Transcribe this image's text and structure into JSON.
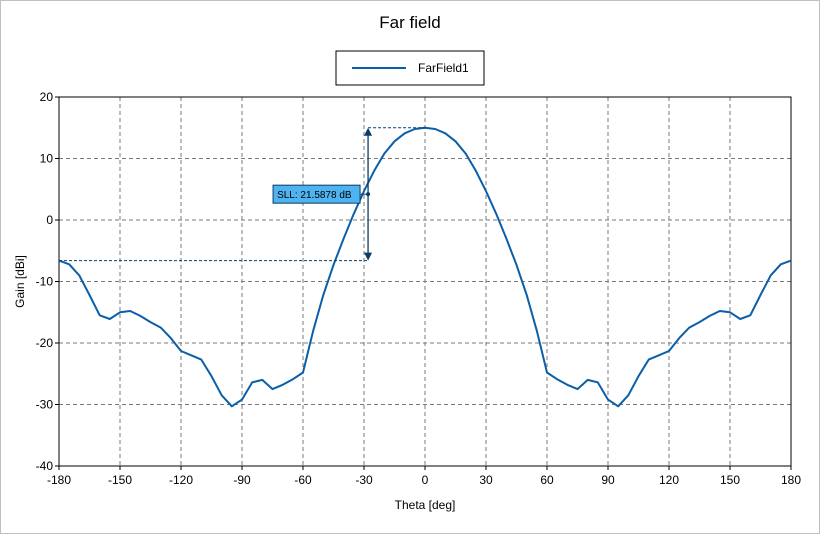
{
  "chart_data": {
    "type": "line",
    "title": "Far field",
    "xlabel": "Theta [deg]",
    "ylabel": "Gain [dBi]",
    "xlim": [
      -180,
      180
    ],
    "ylim": [
      -40,
      20
    ],
    "x_ticks": [
      -180,
      -150,
      -120,
      -90,
      -60,
      -30,
      0,
      30,
      60,
      90,
      120,
      150,
      180
    ],
    "y_ticks": [
      20,
      10,
      0,
      -10,
      -20,
      -30,
      -40
    ],
    "grid": true,
    "legend_position": "top-center",
    "series": [
      {
        "name": "FarField1",
        "color": "#0a5fa8",
        "points": [
          [
            -180,
            -6.6
          ],
          [
            -175,
            -7.2
          ],
          [
            -170,
            -9
          ],
          [
            -165,
            -12.2
          ],
          [
            -160,
            -15.5
          ],
          [
            -155,
            -16.1
          ],
          [
            -150,
            -15
          ],
          [
            -145,
            -14.8
          ],
          [
            -140,
            -15.6
          ],
          [
            -135,
            -16.6
          ],
          [
            -130,
            -17.5
          ],
          [
            -125,
            -19.2
          ],
          [
            -120,
            -21.3
          ],
          [
            -115,
            -22
          ],
          [
            -110,
            -22.7
          ],
          [
            -105,
            -25.4
          ],
          [
            -100,
            -28.5
          ],
          [
            -95,
            -30.3
          ],
          [
            -90,
            -29.2
          ],
          [
            -85,
            -26.4
          ],
          [
            -80,
            -26
          ],
          [
            -75,
            -27.5
          ],
          [
            -70,
            -26.8
          ],
          [
            -65,
            -25.9
          ],
          [
            -60,
            -24.8
          ],
          [
            -55,
            -18
          ],
          [
            -50,
            -12.2
          ],
          [
            -45,
            -7.3
          ],
          [
            -40,
            -3
          ],
          [
            -35,
            1
          ],
          [
            -30,
            4.7
          ],
          [
            -25,
            8
          ],
          [
            -20,
            10.8
          ],
          [
            -15,
            12.8
          ],
          [
            -10,
            14.1
          ],
          [
            -5,
            14.8
          ],
          [
            0,
            15
          ],
          [
            5,
            14.8
          ],
          [
            10,
            14.1
          ],
          [
            15,
            12.8
          ],
          [
            20,
            10.8
          ],
          [
            25,
            8
          ],
          [
            30,
            4.7
          ],
          [
            35,
            1
          ],
          [
            40,
            -3
          ],
          [
            45,
            -7.3
          ],
          [
            50,
            -12.2
          ],
          [
            55,
            -18
          ],
          [
            60,
            -24.8
          ],
          [
            65,
            -25.9
          ],
          [
            70,
            -26.8
          ],
          [
            75,
            -27.5
          ],
          [
            80,
            -26
          ],
          [
            85,
            -26.4
          ],
          [
            90,
            -29.2
          ],
          [
            95,
            -30.3
          ],
          [
            100,
            -28.5
          ],
          [
            105,
            -25.4
          ],
          [
            110,
            -22.7
          ],
          [
            115,
            -22
          ],
          [
            120,
            -21.3
          ],
          [
            125,
            -19.2
          ],
          [
            130,
            -17.5
          ],
          [
            135,
            -16.6
          ],
          [
            140,
            -15.6
          ],
          [
            145,
            -14.8
          ],
          [
            150,
            -15
          ],
          [
            155,
            -16.1
          ],
          [
            160,
            -15.5
          ],
          [
            165,
            -12.2
          ],
          [
            170,
            -9
          ],
          [
            175,
            -7.2
          ],
          [
            180,
            -6.6
          ]
        ]
      }
    ],
    "annotations": {
      "sll": {
        "label": "SLL: 21.5878 dB",
        "x": -28,
        "top_y": 15,
        "bottom_y": -6.6,
        "peak_x": 0
      }
    }
  }
}
